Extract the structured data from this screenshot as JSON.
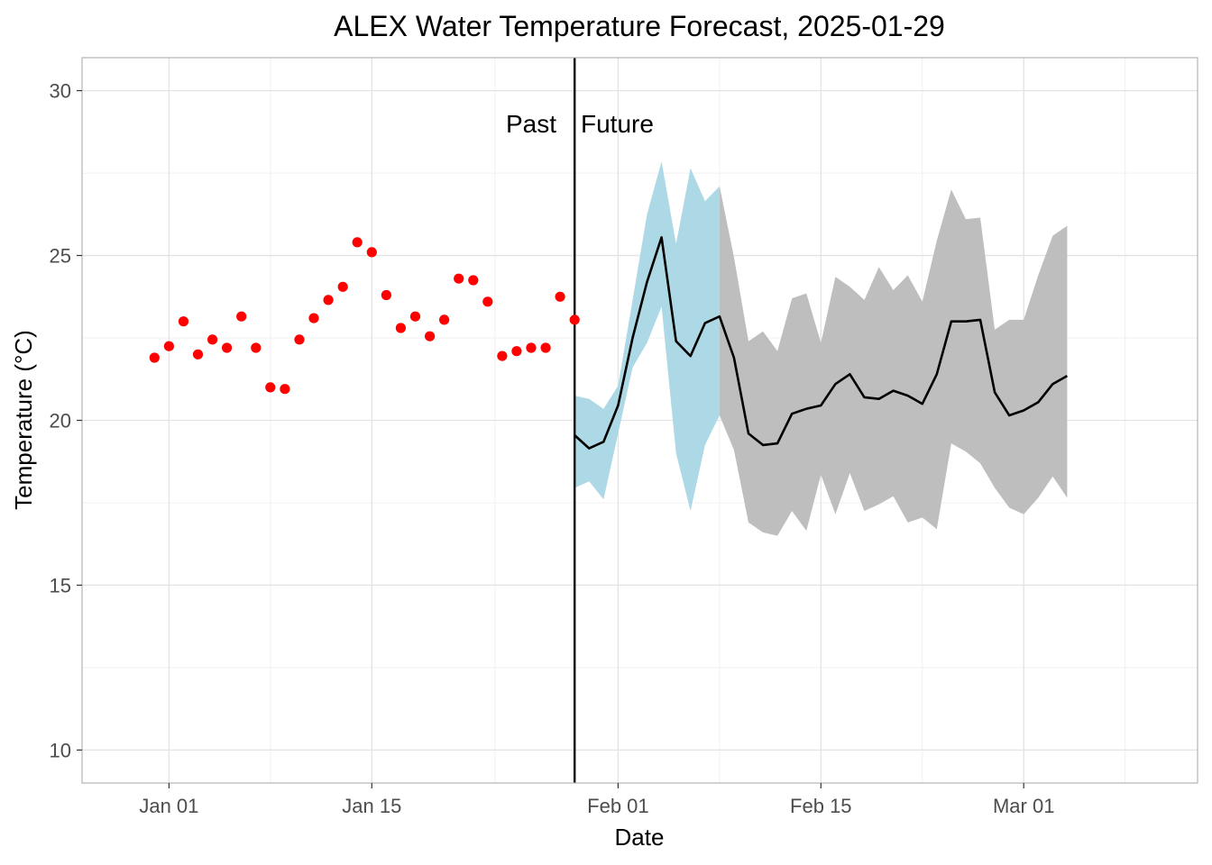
{
  "chart_data": {
    "type": "line",
    "title": "ALEX Water Temperature Forecast, 2025-01-29",
    "xlabel": "Date",
    "ylabel": "Temperature (°C)",
    "xlim": [
      "2024-12-26",
      "2025-03-13"
    ],
    "ylim": [
      9,
      31
    ],
    "grid": true,
    "x_ticks": [
      {
        "date": "2025-01-01",
        "label": "Jan 01"
      },
      {
        "date": "2025-01-15",
        "label": "Jan 15"
      },
      {
        "date": "2025-02-01",
        "label": "Feb 01"
      },
      {
        "date": "2025-02-15",
        "label": "Feb 15"
      },
      {
        "date": "2025-03-01",
        "label": "Mar 01"
      }
    ],
    "y_ticks": [
      10,
      15,
      20,
      25,
      30
    ],
    "reference_line": {
      "date": "2025-01-29"
    },
    "annotations": [
      {
        "text": "Past",
        "side": "left"
      },
      {
        "text": "Future",
        "side": "right"
      }
    ],
    "observed": {
      "color": "#ff0000",
      "points": [
        {
          "x": "2024-12-31",
          "y": 21.9
        },
        {
          "x": "2025-01-01",
          "y": 22.25
        },
        {
          "x": "2025-01-02",
          "y": 23.0
        },
        {
          "x": "2025-01-03",
          "y": 22.0
        },
        {
          "x": "2025-01-04",
          "y": 22.45
        },
        {
          "x": "2025-01-05",
          "y": 22.2
        },
        {
          "x": "2025-01-06",
          "y": 23.15
        },
        {
          "x": "2025-01-07",
          "y": 22.2
        },
        {
          "x": "2025-01-08",
          "y": 21.0
        },
        {
          "x": "2025-01-09",
          "y": 20.95
        },
        {
          "x": "2025-01-10",
          "y": 22.45
        },
        {
          "x": "2025-01-11",
          "y": 23.1
        },
        {
          "x": "2025-01-12",
          "y": 23.65
        },
        {
          "x": "2025-01-13",
          "y": 24.05
        },
        {
          "x": "2025-01-14",
          "y": 25.4
        },
        {
          "x": "2025-01-15",
          "y": 25.1
        },
        {
          "x": "2025-01-16",
          "y": 23.8
        },
        {
          "x": "2025-01-17",
          "y": 22.8
        },
        {
          "x": "2025-01-18",
          "y": 23.15
        },
        {
          "x": "2025-01-19",
          "y": 22.55
        },
        {
          "x": "2025-01-20",
          "y": 23.05
        },
        {
          "x": "2025-01-21",
          "y": 24.3
        },
        {
          "x": "2025-01-22",
          "y": 24.25
        },
        {
          "x": "2025-01-23",
          "y": 23.6
        },
        {
          "x": "2025-01-24",
          "y": 21.95
        },
        {
          "x": "2025-01-25",
          "y": 22.1
        },
        {
          "x": "2025-01-26",
          "y": 22.2
        },
        {
          "x": "2025-01-27",
          "y": 22.2
        },
        {
          "x": "2025-01-28",
          "y": 23.75
        },
        {
          "x": "2025-01-29",
          "y": 23.05
        }
      ]
    },
    "forecast": {
      "line_color": "#000000",
      "band_colors": [
        "#add8e6",
        "#bebebe"
      ],
      "x": [
        "2025-01-29",
        "2025-01-30",
        "2025-01-31",
        "2025-02-01",
        "2025-02-02",
        "2025-02-03",
        "2025-02-04",
        "2025-02-05",
        "2025-02-06",
        "2025-02-07",
        "2025-02-08",
        "2025-02-09",
        "2025-02-10",
        "2025-02-11",
        "2025-02-12",
        "2025-02-13",
        "2025-02-14",
        "2025-02-15",
        "2025-02-16",
        "2025-02-17",
        "2025-02-18",
        "2025-02-19",
        "2025-02-20",
        "2025-02-21",
        "2025-02-22",
        "2025-02-23",
        "2025-02-24",
        "2025-02-25",
        "2025-02-26",
        "2025-02-27",
        "2025-02-28",
        "2025-03-01",
        "2025-03-02",
        "2025-03-03",
        "2025-03-04"
      ],
      "mean": [
        19.55,
        19.15,
        19.35,
        20.45,
        22.5,
        24.2,
        25.55,
        22.4,
        21.95,
        22.95,
        23.15,
        21.9,
        19.6,
        19.25,
        19.3,
        20.2,
        20.35,
        20.45,
        21.1,
        21.4,
        20.7,
        20.65,
        20.9,
        20.75,
        20.5,
        21.4,
        23.0,
        23.0,
        23.05,
        20.85,
        20.15,
        20.3,
        20.55,
        21.1,
        21.35
      ],
      "upper": [
        20.75,
        20.65,
        20.35,
        21.05,
        23.65,
        26.25,
        27.85,
        25.35,
        27.65,
        26.65,
        27.1,
        24.95,
        22.4,
        22.7,
        22.1,
        23.7,
        23.85,
        22.35,
        24.35,
        24.05,
        23.65,
        24.65,
        23.95,
        24.4,
        23.6,
        25.45,
        27.0,
        26.1,
        26.15,
        22.75,
        23.05,
        23.05,
        24.4,
        25.6,
        25.9
      ],
      "lower": [
        17.95,
        18.15,
        17.6,
        19.6,
        21.6,
        22.35,
        23.45,
        19.0,
        17.25,
        19.25,
        20.15,
        19.1,
        16.9,
        16.6,
        16.5,
        17.25,
        16.65,
        18.35,
        17.15,
        18.4,
        17.25,
        17.45,
        17.7,
        16.9,
        17.05,
        16.7,
        19.3,
        19.05,
        18.7,
        17.95,
        17.35,
        17.15,
        17.65,
        18.3,
        17.65
      ]
    }
  }
}
